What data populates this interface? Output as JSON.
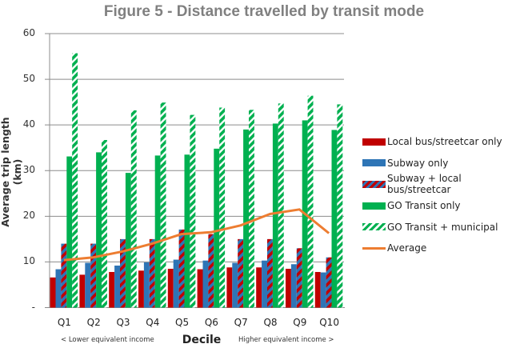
{
  "chart_data": {
    "type": "bar",
    "title": "Figure 5 - Distance travelled by transit mode",
    "xlabel": "Decile",
    "ylabel": "Average trip length (km)",
    "x_annotations": {
      "left": "< Lower equivalent income",
      "right": "Higher equivalent income >"
    },
    "ylim": [
      0,
      60
    ],
    "yticks": [
      "-",
      "10",
      "20",
      "30",
      "40",
      "50",
      "60"
    ],
    "grid": true,
    "legend_position": "right",
    "categories": [
      "Q1",
      "Q2",
      "Q3",
      "Q4",
      "Q5",
      "Q6",
      "Q7",
      "Q8",
      "Q9",
      "Q10"
    ],
    "series": [
      {
        "name": "Local bus/streetcar only",
        "type": "bar",
        "color": "#C00000",
        "pattern": "solid",
        "values": [
          6.6,
          7.2,
          7.8,
          8.1,
          8.5,
          8.4,
          8.8,
          8.8,
          8.5,
          7.8
        ]
      },
      {
        "name": "Subway only",
        "type": "bar",
        "color": "#2E75B6",
        "pattern": "solid",
        "values": [
          8.4,
          9.8,
          9.2,
          9.9,
          10.5,
          10.3,
          9.8,
          10.3,
          9.5,
          7.7
        ]
      },
      {
        "name": "Subway + local bus/streetcar",
        "type": "bar",
        "color": "#C00000",
        "color2": "#2E75B6",
        "pattern": "diagonal-stripes",
        "values": [
          14.0,
          14.0,
          15.0,
          15.0,
          17.1,
          16.1,
          15.0,
          15.0,
          13.0,
          11.0
        ]
      },
      {
        "name": "GO Transit only",
        "type": "bar",
        "color": "#00B050",
        "pattern": "solid",
        "values": [
          33.1,
          34.0,
          29.5,
          33.3,
          33.5,
          34.8,
          39.0,
          40.3,
          41.0,
          38.9
        ]
      },
      {
        "name": "GO Transit + municipal",
        "type": "bar",
        "color": "#00B050",
        "color2": "#ffffff",
        "pattern": "diagonal-stripes",
        "values": [
          55.7,
          36.7,
          43.2,
          44.9,
          42.2,
          43.8,
          43.3,
          44.7,
          46.4,
          44.5
        ]
      },
      {
        "name": "Average",
        "type": "line",
        "color": "#ED7D31",
        "values": [
          10.4,
          11.0,
          12.3,
          14.0,
          16.1,
          16.5,
          18.0,
          20.5,
          21.5,
          16.3
        ]
      }
    ]
  }
}
